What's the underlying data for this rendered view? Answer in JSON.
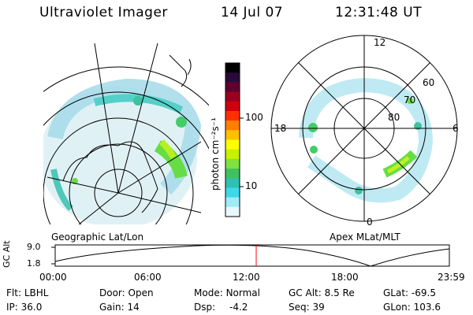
{
  "header": {
    "instrument": "Ultraviolet Imager",
    "date": "14 Jul 07",
    "time": "12:31:48 UT"
  },
  "left_panel": {
    "label": "Geographic Lat/Lon"
  },
  "colorbar": {
    "unit_label": "photon cm⁻²s⁻¹",
    "ticks": [
      "100",
      "10"
    ],
    "scale": "log",
    "colors": [
      "#000000",
      "#2a0a3a",
      "#600030",
      "#9a0020",
      "#d00010",
      "#ff3000",
      "#ff8000",
      "#ffc000",
      "#ffff00",
      "#c8f000",
      "#80e040",
      "#40c060",
      "#30c0b0",
      "#40d8e8",
      "#a0ecf4",
      "#e8f8fc"
    ]
  },
  "right_panel": {
    "label": "Apex MLat/MLT",
    "mlt_labels": {
      "top": "12",
      "left": "18",
      "right": "6",
      "bottom": "0"
    },
    "mlat_labels": [
      "60",
      "70",
      "80"
    ]
  },
  "altitude_plot": {
    "ylabel": "GC Alt",
    "yticks": [
      "9.0",
      "1.8"
    ],
    "xticks": [
      "00:00",
      "06:00",
      "12:00",
      "18:00",
      "23:59"
    ],
    "current_time_color": "#ff0000"
  },
  "status": {
    "flt_label": "Flt:",
    "flt_value": "LBHL",
    "ip_label": "IP:",
    "ip_value": "36.0",
    "door_label": "Door:",
    "door_value": "Open",
    "gain_label": "Gain:",
    "gain_value": "14",
    "mode_label": "Mode:",
    "mode_value": "Normal",
    "dsp_label": "Dsp:",
    "dsp_value": "-4.2",
    "gcalt_label": "GC Alt:",
    "gcalt_value": "8.5 Re",
    "seq_label": "Seq:",
    "seq_value": "39",
    "glat_label": "GLat:",
    "glat_value": "-69.5",
    "glon_label": "GLon:",
    "glon_value": "103.6"
  }
}
